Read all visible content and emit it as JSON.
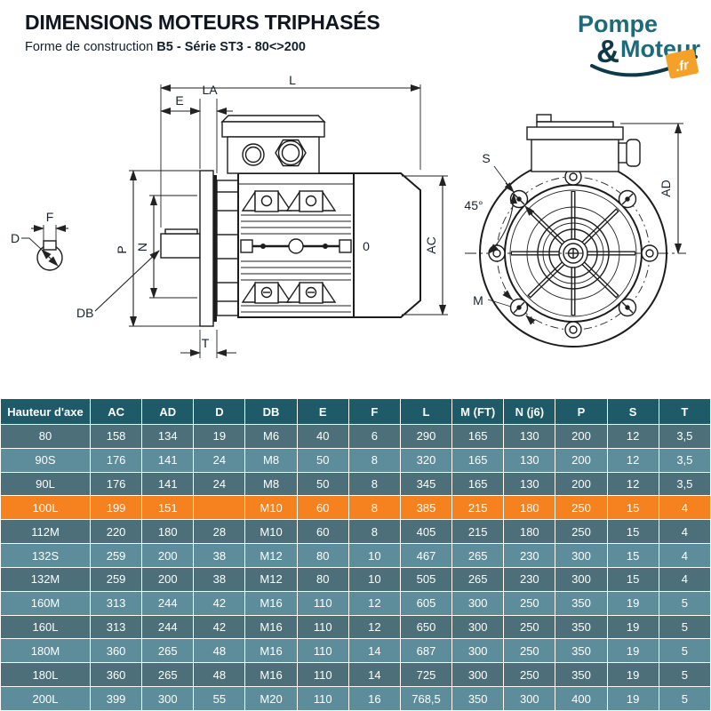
{
  "header": {
    "title": "DIMENSIONS MOTEURS TRIPHASÉS",
    "subtitle_prefix": "Forme de construction ",
    "subtitle_bold": "B5 - Série ST3 - 80<>200"
  },
  "logo": {
    "word1": "Pompe",
    "amp": "&",
    "word2": "Moteur",
    "tld": ".fr"
  },
  "diagram": {
    "side": {
      "L": "L",
      "E": "E",
      "LA": "LA",
      "P": "P",
      "N": "N",
      "F": "F",
      "D": "D",
      "DB": "DB",
      "T": "T",
      "O": "0",
      "AC": "AC"
    },
    "front": {
      "S": "S",
      "angle": "45°",
      "M": "M",
      "AD": "AD"
    }
  },
  "table": {
    "columns": [
      "Hauteur d'axe",
      "AC",
      "AD",
      "D",
      "DB",
      "E",
      "F",
      "L",
      "M (FT)",
      "N (j6)",
      "P",
      "S",
      "T"
    ],
    "rows": [
      {
        "cells": [
          "80",
          "158",
          "134",
          "19",
          "M6",
          "40",
          "6",
          "290",
          "165",
          "130",
          "200",
          "12",
          "3,5"
        ],
        "highlight": false
      },
      {
        "cells": [
          "90S",
          "176",
          "141",
          "24",
          "M8",
          "50",
          "8",
          "320",
          "165",
          "130",
          "200",
          "12",
          "3,5"
        ],
        "highlight": false
      },
      {
        "cells": [
          "90L",
          "176",
          "141",
          "24",
          "M8",
          "50",
          "8",
          "345",
          "165",
          "130",
          "200",
          "12",
          "3,5"
        ],
        "highlight": false
      },
      {
        "cells": [
          "100L",
          "199",
          "151",
          "",
          "M10",
          "60",
          "8",
          "385",
          "215",
          "180",
          "250",
          "15",
          "4"
        ],
        "highlight": true
      },
      {
        "cells": [
          "112M",
          "220",
          "180",
          "28",
          "M10",
          "60",
          "8",
          "405",
          "215",
          "180",
          "250",
          "15",
          "4"
        ],
        "highlight": false
      },
      {
        "cells": [
          "132S",
          "259",
          "200",
          "38",
          "M12",
          "80",
          "10",
          "467",
          "265",
          "230",
          "300",
          "15",
          "4"
        ],
        "highlight": false
      },
      {
        "cells": [
          "132M",
          "259",
          "200",
          "38",
          "M12",
          "80",
          "10",
          "505",
          "265",
          "230",
          "300",
          "15",
          "4"
        ],
        "highlight": false
      },
      {
        "cells": [
          "160M",
          "313",
          "244",
          "42",
          "M16",
          "110",
          "12",
          "605",
          "300",
          "250",
          "350",
          "19",
          "5"
        ],
        "highlight": false
      },
      {
        "cells": [
          "160L",
          "313",
          "244",
          "42",
          "M16",
          "110",
          "12",
          "650",
          "300",
          "250",
          "350",
          "19",
          "5"
        ],
        "highlight": false
      },
      {
        "cells": [
          "180M",
          "360",
          "265",
          "48",
          "M16",
          "110",
          "14",
          "687",
          "300",
          "250",
          "350",
          "19",
          "5"
        ],
        "highlight": false
      },
      {
        "cells": [
          "180L",
          "360",
          "265",
          "48",
          "M16",
          "110",
          "14",
          "725",
          "300",
          "250",
          "350",
          "19",
          "5"
        ],
        "highlight": false
      },
      {
        "cells": [
          "200L",
          "399",
          "300",
          "55",
          "M20",
          "110",
          "16",
          "768,5",
          "350",
          "300",
          "400",
          "19",
          "5"
        ],
        "highlight": false
      }
    ]
  },
  "colors": {
    "header_bg": "#1e5a68",
    "row_dark": "#4c6f7a",
    "row_light": "#5d8c9b",
    "highlight": "#f5821f",
    "logo_teal": "#1d6b79",
    "logo_dark": "#0e3a47",
    "logo_orange": "#f5a028"
  }
}
